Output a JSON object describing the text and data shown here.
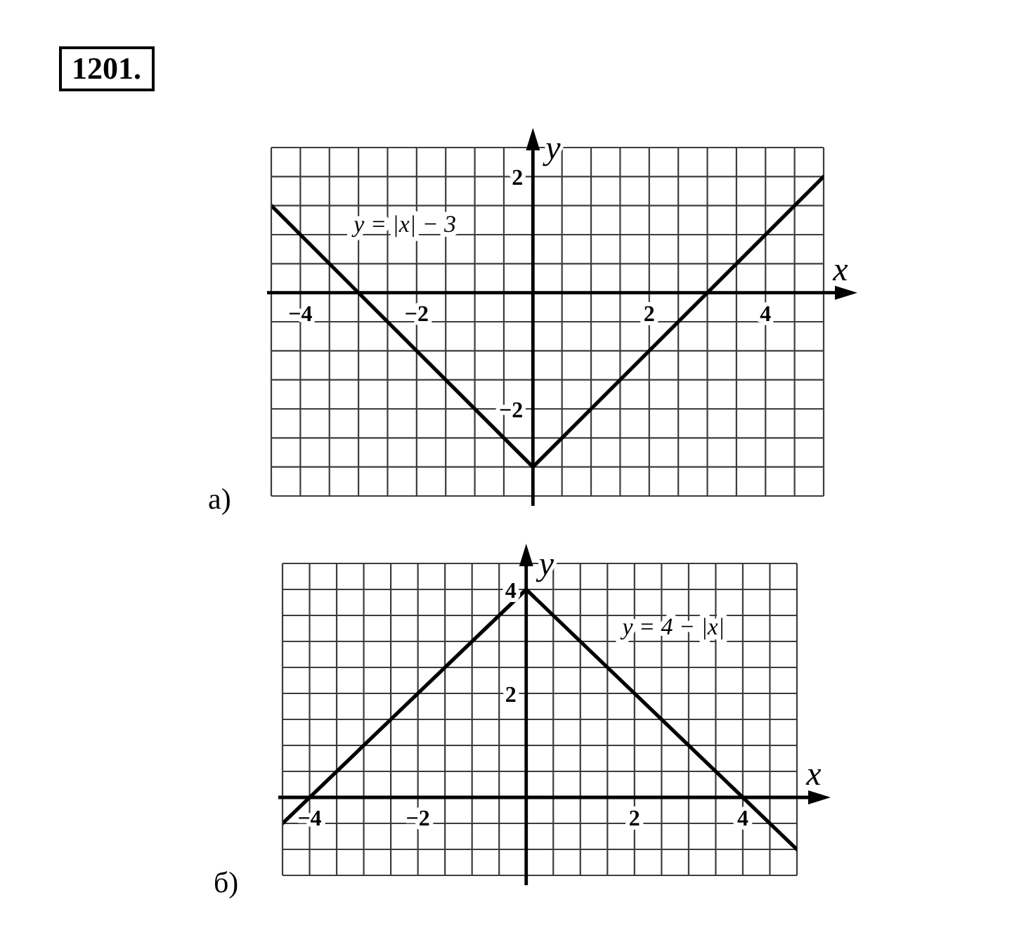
{
  "chart_data": [
    {
      "type": "line",
      "title": "1201.",
      "annotations": [
        "а)"
      ],
      "xlabel": "x",
      "ylabel": "y",
      "xlim": [
        -4.5,
        5
      ],
      "ylim": [
        -3.5,
        2.5
      ],
      "xticks": [
        {
          "value": -4.5,
          "label": null
        },
        {
          "value": -4,
          "label": "−4"
        },
        {
          "value": -3.5,
          "label": null
        },
        {
          "value": -3,
          "label": null
        },
        {
          "value": -2.5,
          "label": null
        },
        {
          "value": -2,
          "label": "−2"
        },
        {
          "value": -1.5,
          "label": null
        },
        {
          "value": -1,
          "label": null
        },
        {
          "value": -0.5,
          "label": null
        },
        {
          "value": 0,
          "label": null
        },
        {
          "value": 0.5,
          "label": null
        },
        {
          "value": 1,
          "label": null
        },
        {
          "value": 1.5,
          "label": null
        },
        {
          "value": 2,
          "label": "2"
        },
        {
          "value": 2.5,
          "label": null
        },
        {
          "value": 3,
          "label": null
        },
        {
          "value": 3.5,
          "label": null
        },
        {
          "value": 4,
          "label": "4"
        },
        {
          "value": 4.5,
          "label": null
        },
        {
          "value": 5,
          "label": null
        }
      ],
      "yticks": [
        {
          "value": -3.5,
          "label": null
        },
        {
          "value": -3,
          "label": null
        },
        {
          "value": -2.5,
          "label": null
        },
        {
          "value": -2,
          "label": "−2"
        },
        {
          "value": -1.5,
          "label": null
        },
        {
          "value": -1,
          "label": null
        },
        {
          "value": -0.5,
          "label": null
        },
        {
          "value": 0,
          "label": null
        },
        {
          "value": 0.5,
          "label": null
        },
        {
          "value": 1,
          "label": null
        },
        {
          "value": 1.5,
          "label": null
        },
        {
          "value": 2,
          "label": "2"
        },
        {
          "value": 2.5,
          "label": null
        }
      ],
      "grid": true,
      "series": [
        {
          "name": "y = |x| − 3",
          "color": "#000000",
          "x": [
            -4.5,
            0,
            5
          ],
          "values": [
            1.5,
            -3,
            2
          ]
        }
      ]
    },
    {
      "type": "line",
      "annotations": [
        "б)"
      ],
      "xlabel": "x",
      "ylabel": "y",
      "xlim": [
        -4.5,
        5
      ],
      "ylim": [
        -1.5,
        4.5
      ],
      "xticks": [
        {
          "value": -4.5,
          "label": null
        },
        {
          "value": -4,
          "label": "−4"
        },
        {
          "value": -3.5,
          "label": null
        },
        {
          "value": -3,
          "label": null
        },
        {
          "value": -2.5,
          "label": null
        },
        {
          "value": -2,
          "label": "−2"
        },
        {
          "value": -1.5,
          "label": null
        },
        {
          "value": -1,
          "label": null
        },
        {
          "value": -0.5,
          "label": null
        },
        {
          "value": 0,
          "label": null
        },
        {
          "value": 0.5,
          "label": null
        },
        {
          "value": 1,
          "label": null
        },
        {
          "value": 1.5,
          "label": null
        },
        {
          "value": 2,
          "label": "2"
        },
        {
          "value": 2.5,
          "label": null
        },
        {
          "value": 3,
          "label": null
        },
        {
          "value": 3.5,
          "label": null
        },
        {
          "value": 4,
          "label": "4"
        },
        {
          "value": 4.5,
          "label": null
        },
        {
          "value": 5,
          "label": null
        }
      ],
      "yticks": [
        {
          "value": -1.5,
          "label": null
        },
        {
          "value": -1,
          "label": null
        },
        {
          "value": -0.5,
          "label": null
        },
        {
          "value": 0,
          "label": null
        },
        {
          "value": 0.5,
          "label": null
        },
        {
          "value": 1,
          "label": null
        },
        {
          "value": 1.5,
          "label": null
        },
        {
          "value": 2,
          "label": "2"
        },
        {
          "value": 2.5,
          "label": null
        },
        {
          "value": 3,
          "label": null
        },
        {
          "value": 3.5,
          "label": null
        },
        {
          "value": 4,
          "label": "4"
        },
        {
          "value": 4.5,
          "label": null
        }
      ],
      "grid": true,
      "series": [
        {
          "name": "y = 4 − |x|",
          "color": "#000000",
          "x": [
            -4.5,
            0,
            5
          ],
          "values": [
            -0.5,
            4,
            -1
          ]
        }
      ]
    }
  ]
}
